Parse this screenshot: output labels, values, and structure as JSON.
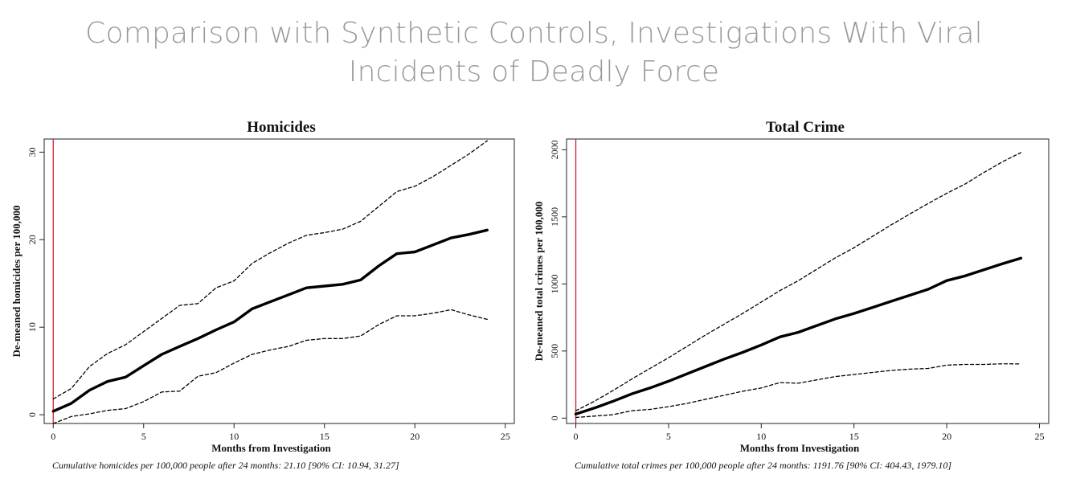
{
  "slide": {
    "title_line1": "Comparison with Synthetic Controls, Investigations With Viral",
    "title_line2": "Incidents of Deadly Force"
  },
  "colors": {
    "estimate": "#000000",
    "ci": "#000000",
    "event_line": "#d02030",
    "title": "#9a9a9a"
  },
  "chart_data": [
    {
      "type": "line",
      "title": "Homicides",
      "xlabel": "Months from Investigation",
      "ylabel": "De-meaned homicides per 100,000",
      "xlim": [
        -0.5,
        25.5
      ],
      "ylim": [
        -1,
        31.5
      ],
      "xticks": [
        0,
        5,
        10,
        15,
        20,
        25
      ],
      "yticks": [
        0,
        10,
        20,
        30
      ],
      "event_x": 0,
      "grid": false,
      "legend": "none",
      "caption": "Cumulative homicides per 100,000 people after 24 months: 21.10 [90% CI: 10.94, 31.27]",
      "x": [
        0,
        1,
        2,
        3,
        4,
        5,
        6,
        7,
        8,
        9,
        10,
        11,
        12,
        13,
        14,
        15,
        16,
        17,
        18,
        19,
        20,
        21,
        22,
        23,
        24
      ],
      "series": [
        {
          "role": "estimate",
          "style": "solid",
          "values": [
            0.4,
            1.3,
            2.8,
            3.8,
            4.3,
            5.6,
            6.9,
            7.8,
            8.7,
            9.7,
            10.6,
            12.1,
            12.9,
            13.7,
            14.5,
            14.7,
            14.9,
            15.4,
            17.0,
            18.4,
            18.6,
            19.4,
            20.2,
            20.6,
            21.1
          ]
        },
        {
          "role": "upper",
          "style": "dashed",
          "values": [
            1.8,
            3.0,
            5.5,
            7.0,
            8.0,
            9.5,
            11.0,
            12.5,
            12.7,
            14.5,
            15.3,
            17.3,
            18.5,
            19.6,
            20.5,
            20.8,
            21.2,
            22.1,
            23.8,
            25.5,
            26.1,
            27.2,
            28.5,
            29.8,
            31.3
          ]
        },
        {
          "role": "lower",
          "style": "dashed",
          "values": [
            -1.0,
            -0.2,
            0.1,
            0.5,
            0.7,
            1.5,
            2.6,
            2.7,
            4.4,
            4.8,
            5.9,
            6.9,
            7.4,
            7.8,
            8.5,
            8.7,
            8.7,
            9.0,
            10.3,
            11.3,
            11.3,
            11.6,
            12.0,
            11.4,
            10.9
          ]
        }
      ]
    },
    {
      "type": "line",
      "title": "Total Crime",
      "xlabel": "Months from Investigation",
      "ylabel": "De-meaned total crimes per 100,000",
      "xlim": [
        -0.5,
        25.5
      ],
      "ylim": [
        -40,
        2080
      ],
      "xticks": [
        0,
        5,
        10,
        15,
        20,
        25
      ],
      "yticks": [
        0,
        500,
        1000,
        1500,
        2000
      ],
      "event_x": 0,
      "grid": false,
      "legend": "none",
      "caption": "Cumulative total crimes per 100,000 people after 24 months: 1191.76 [90% CI: 404.43, 1979.10]",
      "x": [
        0,
        1,
        2,
        3,
        4,
        5,
        6,
        7,
        8,
        9,
        10,
        11,
        12,
        13,
        14,
        15,
        16,
        17,
        18,
        19,
        20,
        21,
        22,
        23,
        24
      ],
      "series": [
        {
          "role": "estimate",
          "style": "solid",
          "values": [
            30,
            75,
            125,
            180,
            225,
            275,
            330,
            385,
            440,
            490,
            545,
            605,
            640,
            690,
            740,
            780,
            825,
            870,
            915,
            960,
            1025,
            1060,
            1105,
            1150,
            1192
          ]
        },
        {
          "role": "upper",
          "style": "dashed",
          "values": [
            55,
            125,
            205,
            290,
            370,
            450,
            535,
            620,
            700,
            780,
            865,
            950,
            1025,
            1110,
            1195,
            1270,
            1355,
            1440,
            1520,
            1600,
            1675,
            1745,
            1830,
            1910,
            1979
          ]
        },
        {
          "role": "lower",
          "style": "dashed",
          "values": [
            5,
            15,
            25,
            55,
            65,
            85,
            110,
            140,
            170,
            200,
            225,
            265,
            260,
            285,
            310,
            325,
            340,
            355,
            365,
            370,
            395,
            400,
            400,
            405,
            404
          ]
        }
      ]
    }
  ]
}
